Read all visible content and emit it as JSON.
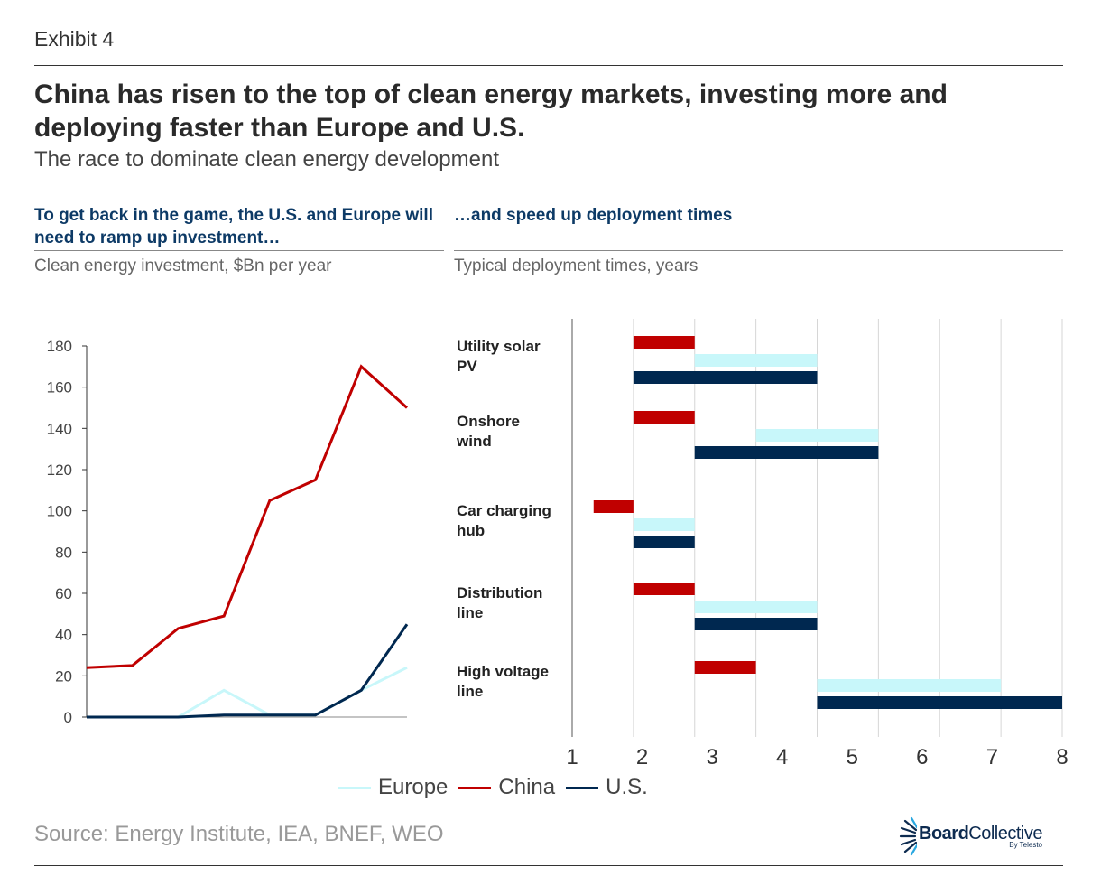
{
  "header": {
    "exhibit": "Exhibit 4",
    "title": "China has risen to the top of clean energy markets, investing more and deploying faster than Europe and U.S.",
    "subtitle": "The race to dominate clean energy development"
  },
  "left_panel": {
    "heading": "To get back in the game, the U.S. and Europe will need to ramp up investment…",
    "measure": "Clean energy investment, $Bn per year"
  },
  "right_panel": {
    "heading": "…and speed up deployment times",
    "measure": "Typical deployment times, years"
  },
  "colors": {
    "europe": "#c8f7fa",
    "china": "#c00000",
    "us": "#002850"
  },
  "legend": [
    {
      "name": "Europe",
      "color_key": "europe"
    },
    {
      "name": "China",
      "color_key": "china"
    },
    {
      "name": "U.S.",
      "color_key": "us"
    }
  ],
  "footer": {
    "source": "Source: Energy Institute, IEA, BNEF, WEO",
    "logo_bold": "Board",
    "logo_regular": "Collective",
    "logo_by": "By Telesto"
  },
  "chart_data": [
    {
      "type": "line",
      "title": "Clean energy investment, $Bn per year",
      "xlabel": "",
      "ylabel": "",
      "x": [
        1,
        2,
        3,
        4,
        5,
        6,
        7,
        8
      ],
      "ylim": [
        0,
        180
      ],
      "yticks": [
        0,
        20,
        40,
        60,
        80,
        100,
        120,
        140,
        160,
        180
      ],
      "grid": false,
      "series": [
        {
          "name": "Europe",
          "color_key": "europe",
          "values": [
            0,
            0,
            0,
            13,
            1,
            1,
            13,
            24
          ]
        },
        {
          "name": "China",
          "color_key": "china",
          "values": [
            24,
            25,
            43,
            49,
            105,
            115,
            170,
            150
          ]
        },
        {
          "name": "U.S.",
          "color_key": "us",
          "values": [
            0,
            0,
            0,
            1,
            1,
            1,
            13,
            45
          ]
        }
      ],
      "legend_position": "bottom"
    },
    {
      "type": "bar",
      "orientation": "horizontal-range",
      "title": "Typical deployment times, years",
      "xlabel": "",
      "ylabel": "",
      "xticks": [
        "1",
        "2",
        "3",
        "4",
        "5",
        "6",
        "7",
        "8"
      ],
      "grid_range": [
        0,
        8
      ],
      "grid": true,
      "categories": [
        "Utility solar PV",
        "Onshore wind",
        "Car charging hub",
        "Distribution line",
        "High voltage line"
      ],
      "series": [
        {
          "name": "China",
          "color_key": "china",
          "ranges": [
            [
              1,
              2
            ],
            [
              1,
              2
            ],
            [
              0.35,
              1
            ],
            [
              1,
              2
            ],
            [
              2,
              3
            ]
          ]
        },
        {
          "name": "Europe",
          "color_key": "europe",
          "ranges": [
            [
              2,
              4
            ],
            [
              3,
              5
            ],
            [
              1,
              2
            ],
            [
              2,
              4
            ],
            [
              4,
              7
            ]
          ]
        },
        {
          "name": "U.S.",
          "color_key": "us",
          "ranges": [
            [
              1,
              4
            ],
            [
              2,
              5
            ],
            [
              1,
              2
            ],
            [
              2,
              4
            ],
            [
              4,
              8
            ]
          ]
        }
      ],
      "legend_position": "bottom"
    }
  ]
}
